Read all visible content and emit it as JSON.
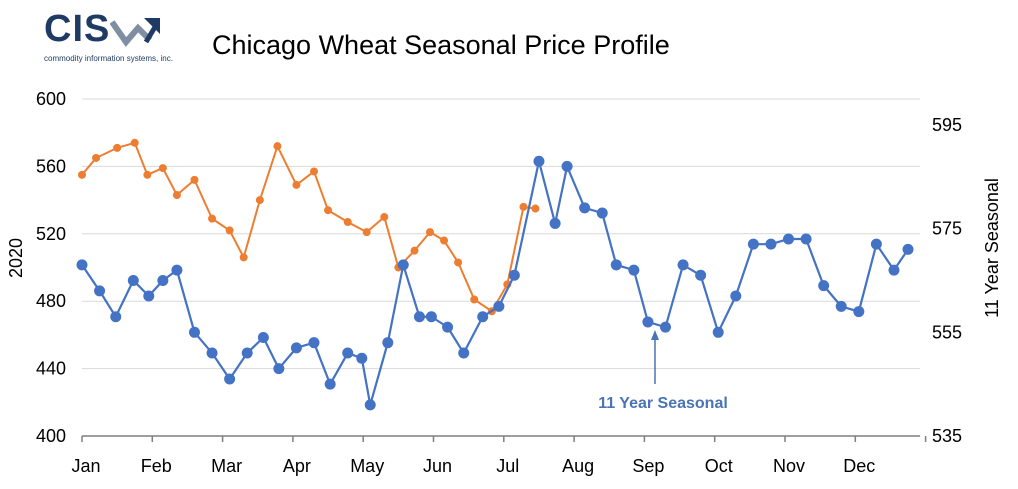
{
  "logo": {
    "text": "CIS",
    "subtitle": "commodity information systems, inc."
  },
  "chart_data": {
    "type": "line",
    "title": "Chicago Wheat Seasonal Price Profile",
    "months": [
      "Jan",
      "Feb",
      "Mar",
      "Apr",
      "May",
      "Jun",
      "Jul",
      "Aug",
      "Sep",
      "Oct",
      "Nov",
      "Dec"
    ],
    "left_axis": {
      "label": "2020",
      "min": 400,
      "max": 600,
      "ticks": [
        400,
        440,
        480,
        520,
        560,
        600
      ]
    },
    "right_axis": {
      "label": "11 Year Seasonal",
      "min": 535,
      "max": 600,
      "ticks": [
        535,
        555,
        575,
        595
      ]
    },
    "grid": "horizontal",
    "annotation": "11 Year Seasonal",
    "series": [
      {
        "name": "2020",
        "axis": "left",
        "color": "#ed7d31",
        "x": [
          0,
          0.2,
          0.5,
          0.75,
          0.93,
          1.15,
          1.35,
          1.6,
          1.85,
          2.1,
          2.3,
          2.53,
          2.78,
          3.05,
          3.3,
          3.5,
          3.78,
          4.05,
          4.3,
          4.5,
          4.73,
          4.95,
          5.15,
          5.35,
          5.58,
          5.83,
          6.05,
          6.28,
          6.45
        ],
        "values": [
          555,
          565,
          571,
          574,
          555,
          559,
          543,
          552,
          529,
          522,
          506,
          540,
          572,
          549,
          557,
          534,
          527,
          521,
          530,
          500,
          510,
          521,
          516,
          503,
          481,
          474,
          490,
          536,
          535
        ]
      },
      {
        "name": "11 Year Seasonal",
        "axis": "right",
        "color": "#4472c4",
        "x": [
          0,
          0.25,
          0.48,
          0.73,
          0.95,
          1.15,
          1.35,
          1.6,
          1.85,
          2.1,
          2.35,
          2.58,
          2.8,
          3.05,
          3.3,
          3.53,
          3.78,
          3.98,
          4.1,
          4.35,
          4.57,
          4.8,
          4.97,
          5.2,
          5.43,
          5.7,
          5.93,
          6.15,
          6.5,
          6.73,
          6.9,
          7.15,
          7.4,
          7.6,
          7.85,
          8.05,
          8.3,
          8.55,
          8.8,
          9.05,
          9.3,
          9.55,
          9.8,
          10.05,
          10.3,
          10.55,
          10.8,
          11.05,
          11.3,
          11.55,
          11.75
        ],
        "values": [
          568,
          563,
          558,
          565,
          562,
          565,
          567,
          555,
          551,
          546,
          551,
          554,
          548,
          552,
          553,
          545,
          551,
          550,
          541,
          553,
          568,
          558,
          558,
          556,
          551,
          558,
          560,
          566,
          588,
          576,
          587,
          579,
          578,
          568,
          567,
          557,
          556,
          568,
          566,
          555,
          562,
          572,
          572,
          573,
          573,
          564,
          560,
          559,
          572,
          567,
          571
        ]
      }
    ]
  }
}
